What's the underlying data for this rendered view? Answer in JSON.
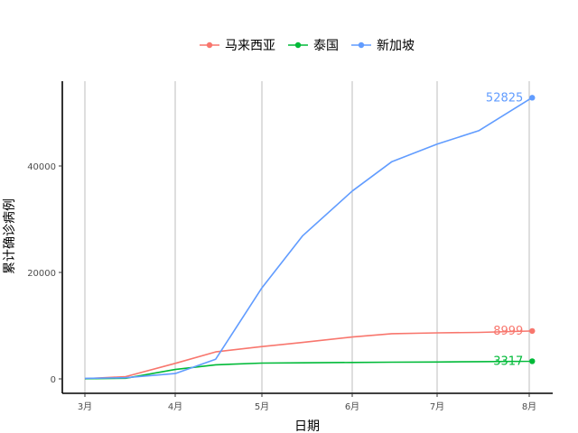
{
  "chart_data": {
    "type": "line",
    "title": "",
    "xlabel": "日期",
    "ylabel": "累计确诊病例",
    "x_categories": [
      "3月",
      "4月",
      "5月",
      "6月",
      "7月",
      "8月"
    ],
    "ylim": [
      -2500,
      55000
    ],
    "yticks": [
      0,
      20000,
      40000
    ],
    "grid": "vertical major gridlines at month starts",
    "legend_position": "top",
    "series": [
      {
        "name": "马来西亚",
        "color": "#F8766D",
        "end_label": "8999",
        "points": [
          [
            "2020-03-01",
            29
          ],
          [
            "2020-03-15",
            428
          ],
          [
            "2020-04-01",
            2908
          ],
          [
            "2020-04-15",
            5072
          ],
          [
            "2020-05-01",
            6071
          ],
          [
            "2020-05-15",
            6855
          ],
          [
            "2020-06-01",
            7857
          ],
          [
            "2020-06-15",
            8494
          ],
          [
            "2020-07-01",
            8640
          ],
          [
            "2020-07-15",
            8737
          ],
          [
            "2020-08-01",
            8976
          ],
          [
            "2020-08-02",
            8999
          ]
        ]
      },
      {
        "name": "泰国",
        "color": "#00BA38",
        "end_label": "3317",
        "points": [
          [
            "2020-03-01",
            42
          ],
          [
            "2020-03-15",
            114
          ],
          [
            "2020-04-01",
            1771
          ],
          [
            "2020-04-15",
            2643
          ],
          [
            "2020-05-01",
            2960
          ],
          [
            "2020-05-15",
            3017
          ],
          [
            "2020-06-01",
            3083
          ],
          [
            "2020-06-15",
            3135
          ],
          [
            "2020-07-01",
            3173
          ],
          [
            "2020-07-15",
            3236
          ],
          [
            "2020-08-01",
            3310
          ],
          [
            "2020-08-02",
            3317
          ]
        ]
      },
      {
        "name": "新加坡",
        "color": "#619CFF",
        "end_label": "52825",
        "points": [
          [
            "2020-03-01",
            106
          ],
          [
            "2020-03-15",
            226
          ],
          [
            "2020-04-01",
            1000
          ],
          [
            "2020-04-15",
            3699
          ],
          [
            "2020-05-01",
            17101
          ],
          [
            "2020-05-15",
            26891
          ],
          [
            "2020-06-01",
            35292
          ],
          [
            "2020-06-15",
            40818
          ],
          [
            "2020-07-01",
            44122
          ],
          [
            "2020-07-15",
            46630
          ],
          [
            "2020-08-01",
            52512
          ],
          [
            "2020-08-02",
            52825
          ]
        ]
      }
    ]
  }
}
